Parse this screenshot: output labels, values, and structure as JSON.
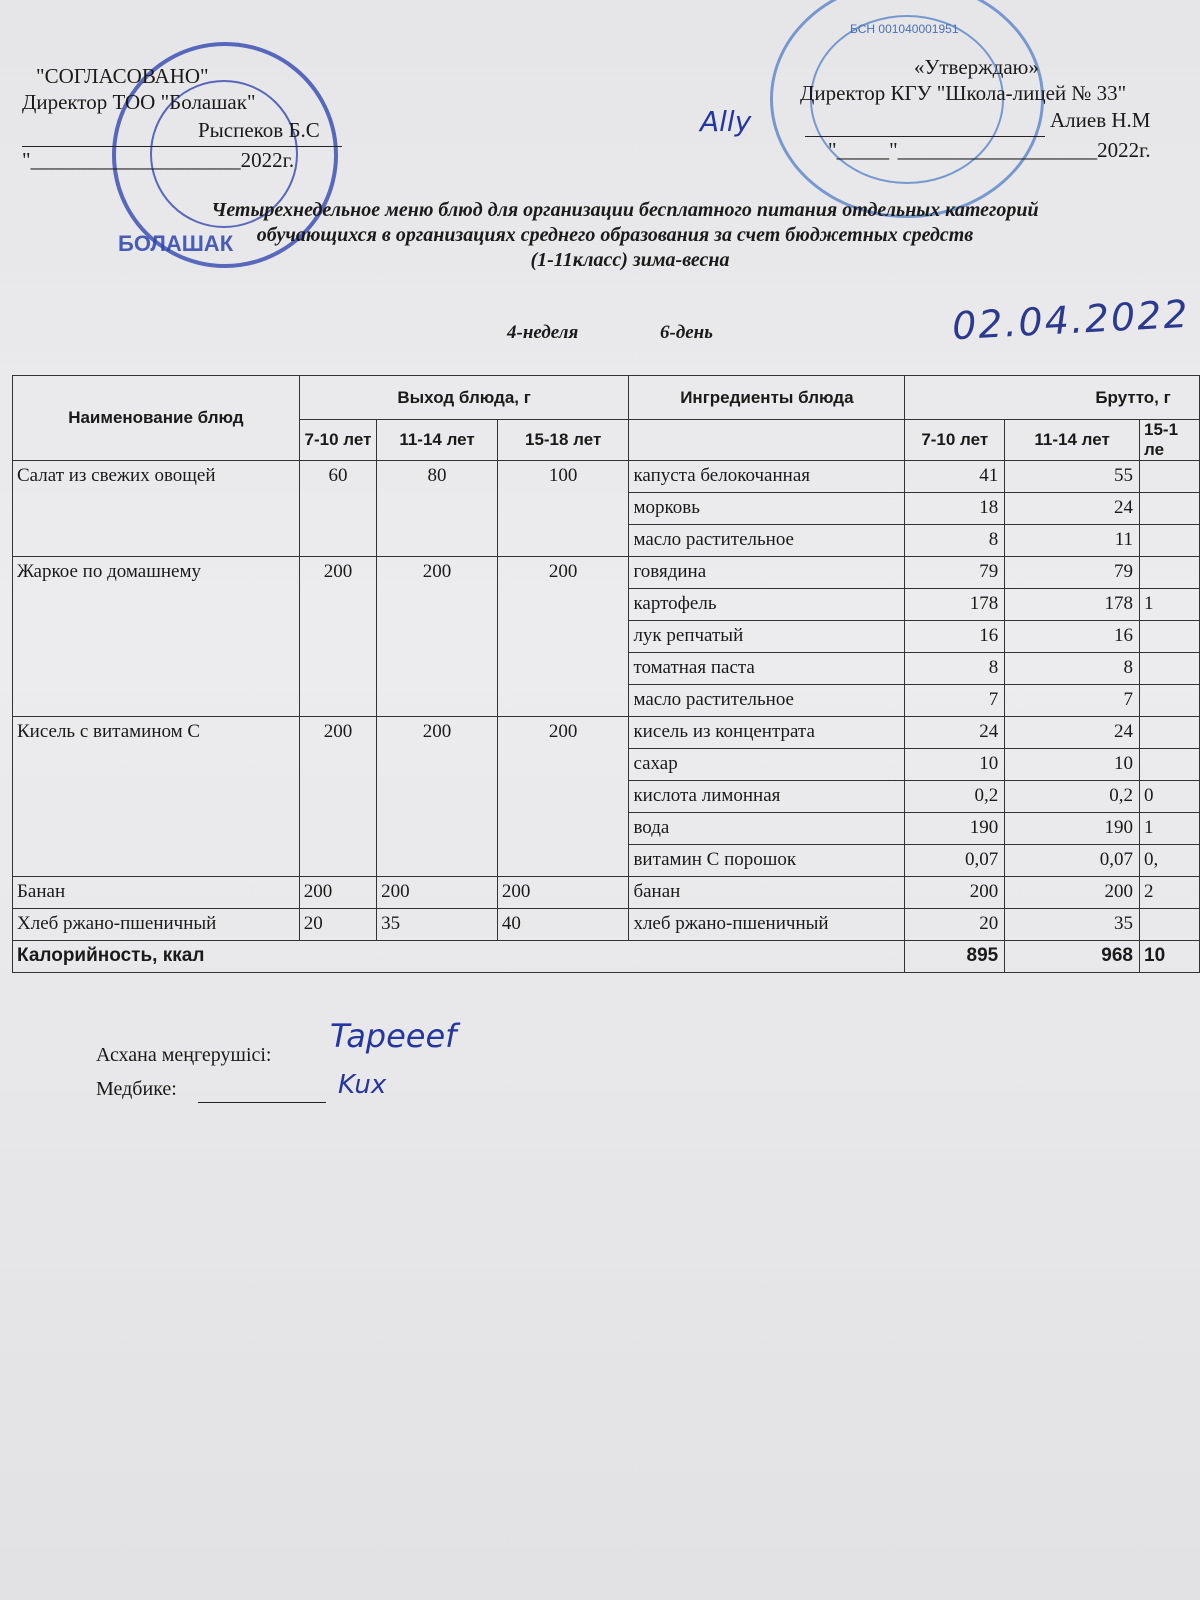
{
  "approval_left": {
    "label": "\"СОГЛАСОВАНО\"",
    "position": "Директор ТОО \"Болашак\"",
    "name": "Рыспеков Б.С",
    "date_line": "\"____________________2022г.",
    "stamp_text": "БОЛАШАК"
  },
  "approval_right": {
    "label": "«Утверждаю»",
    "position": "Директор КГУ \"Школа-лицей № 33\"",
    "name": "Алиев Н.М",
    "date_line": "\"_____\"___________________2022г.",
    "stamp_text": "БСН 001040001951"
  },
  "title": {
    "line1": "Четырехнедельное меню блюд для организации бесплатного питания отдельных категорий",
    "line2": "обучающихся в организациях среднего образования за счет бюджетных средств",
    "line3": "(1-11класс) зима-весна"
  },
  "week": "4-неделя",
  "day": "6-день",
  "handwritten_date": "02.04.2022",
  "table": {
    "headers": {
      "dish": "Наименование блюд",
      "yield": "Выход блюда, г",
      "ingredients": "Ингредиенты блюда",
      "brutto": "Брутто, г",
      "ages": [
        "7-10 лет",
        "11-14 лет",
        "15-18 лет"
      ],
      "brutto_ages": [
        "7-10 лет",
        "11-14 лет",
        "15-1 ле"
      ]
    },
    "dishes": [
      {
        "name": "Салат из свежих овощей",
        "yield": [
          "60",
          "80",
          "100"
        ],
        "ingredients": [
          [
            "капуста белокочанная",
            "41",
            "55",
            ""
          ],
          [
            "морковь",
            "18",
            "24",
            ""
          ],
          [
            "масло растительное",
            "8",
            "11",
            ""
          ]
        ]
      },
      {
        "name": "Жаркое по домашнему",
        "yield": [
          "200",
          "200",
          "200"
        ],
        "ingredients": [
          [
            "говядина",
            "79",
            "79",
            ""
          ],
          [
            "картофель",
            "178",
            "178",
            "1"
          ],
          [
            "лук репчатый",
            "16",
            "16",
            ""
          ],
          [
            "томатная паста",
            "8",
            "8",
            ""
          ],
          [
            "масло растительное",
            "7",
            "7",
            ""
          ]
        ]
      },
      {
        "name": "Кисель с витамином С",
        "yield": [
          "200",
          "200",
          "200"
        ],
        "ingredients": [
          [
            "кисель из концентрата",
            "24",
            "24",
            ""
          ],
          [
            "сахар",
            "10",
            "10",
            ""
          ],
          [
            "кислота лимонная",
            "0,2",
            "0,2",
            "0"
          ],
          [
            "вода",
            "190",
            "190",
            "1"
          ],
          [
            "витамин С порошок",
            "0,07",
            "0,07",
            "0,"
          ]
        ]
      },
      {
        "name": "Банан",
        "yield": [
          "200",
          "200",
          "200"
        ],
        "ingredients": [
          [
            "банан",
            "200",
            "200",
            "2"
          ]
        ]
      },
      {
        "name": "Хлеб ржано-пшеничный",
        "yield": [
          "20",
          "35",
          "40"
        ],
        "ingredients": [
          [
            "хлеб ржано-пшеничный",
            "20",
            "35",
            ""
          ]
        ]
      }
    ],
    "total": {
      "label": "Калорийность, ккал",
      "values": [
        "895",
        "968",
        "10"
      ]
    }
  },
  "footer": {
    "cook": "Асхана меңгерушісі:",
    "nurse": "Медбике:"
  }
}
